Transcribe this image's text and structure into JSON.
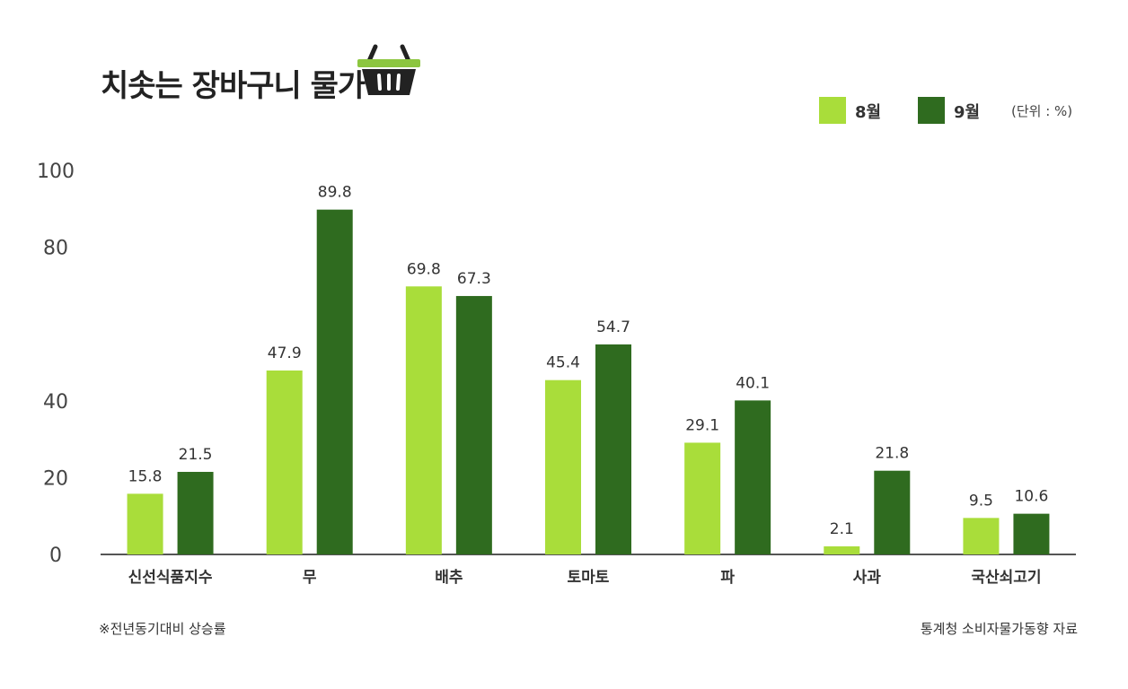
{
  "header": {
    "title": "치솟는 장바구니 물가",
    "unit": "(단위 : %)"
  },
  "footer": {
    "note": "※전년동기대비 상승률",
    "source": "통계청 소비자물가동향 자료"
  },
  "colors": {
    "august": "#a9dd3a",
    "september": "#2f6b1f",
    "axis": "#555555",
    "basket": "#222222",
    "basket_rim": "#8cc63f"
  },
  "icons": {
    "title_icon": "shopping-basket-icon"
  },
  "chart_data": {
    "type": "bar",
    "categories": [
      "신선식품지수",
      "무",
      "배추",
      "토마토",
      "파",
      "사과",
      "국산쇠고기"
    ],
    "series": [
      {
        "name": "8월",
        "values": [
          15.8,
          47.9,
          69.8,
          45.4,
          29.1,
          2.1,
          9.5
        ]
      },
      {
        "name": "9월",
        "values": [
          21.5,
          89.8,
          67.3,
          54.7,
          40.1,
          21.8,
          10.6
        ]
      }
    ],
    "y_ticks": [
      "0",
      "20",
      "40",
      "80",
      "100"
    ],
    "ylim": [
      0,
      100
    ],
    "legend_position": "top-right",
    "grid": false,
    "data_labels": true
  }
}
